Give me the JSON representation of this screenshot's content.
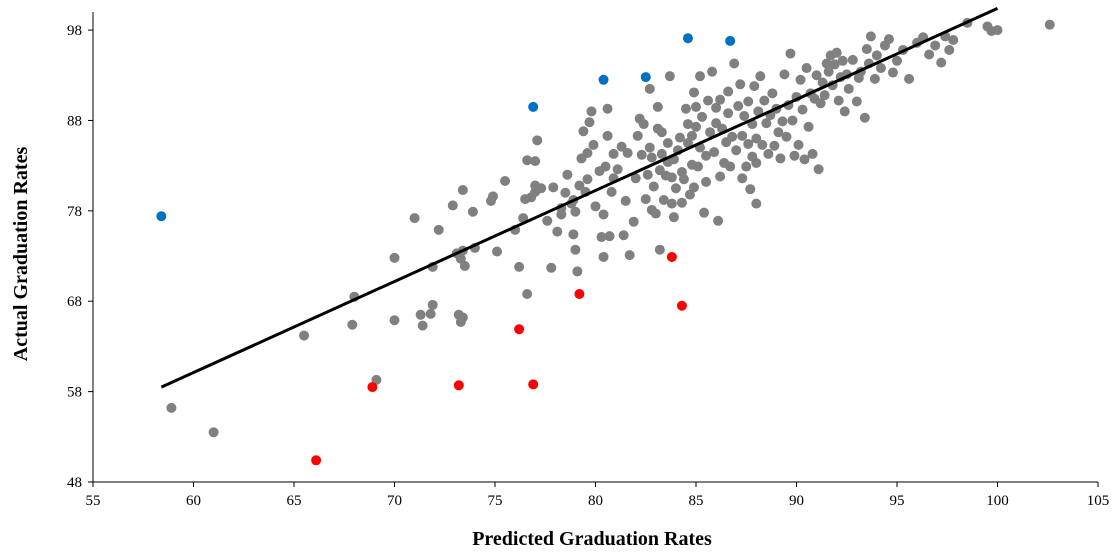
{
  "chart_data": {
    "type": "scatter",
    "title": "",
    "xlabel": "Predicted Graduation Rates",
    "ylabel": "Actual Graduation Rates",
    "xlim": [
      55,
      105
    ],
    "ylim": [
      48,
      100
    ],
    "x_ticks": [
      55,
      60,
      65,
      70,
      75,
      80,
      85,
      90,
      95,
      100,
      105
    ],
    "y_ticks": [
      48,
      58,
      68,
      78,
      88,
      98
    ],
    "grid": false,
    "legend": "none",
    "colors": {
      "base": "#808080",
      "over": "#0070C0",
      "under": "#FF0000",
      "trend": "#000000"
    },
    "series": [
      {
        "color": "#808080",
        "points": [
          [
            58.9,
            56.2
          ],
          [
            61,
            53.5
          ],
          [
            65.5,
            64.2
          ],
          [
            67.9,
            65.4
          ],
          [
            68,
            68.5
          ],
          [
            69.1,
            59.3
          ],
          [
            70,
            72.8
          ],
          [
            70,
            65.9
          ],
          [
            71,
            77.2
          ],
          [
            71.3,
            66.5
          ],
          [
            71.4,
            65.3
          ],
          [
            71.8,
            66.6
          ],
          [
            71.9,
            67.6
          ],
          [
            71.9,
            71.8
          ],
          [
            72.2,
            75.9
          ],
          [
            72.9,
            78.6
          ],
          [
            73.1,
            73.3
          ],
          [
            73.2,
            66.5
          ],
          [
            73.3,
            65.7
          ],
          [
            73.4,
            66.2
          ],
          [
            73.3,
            72.7
          ],
          [
            73.5,
            71.9
          ],
          [
            73.4,
            73.6
          ],
          [
            73.4,
            80.3
          ],
          [
            73.9,
            77.9
          ],
          [
            74,
            73.9
          ],
          [
            74.8,
            79.1
          ],
          [
            74.9,
            79.6
          ],
          [
            75.1,
            73.5
          ],
          [
            75.5,
            81.3
          ],
          [
            76,
            75.9
          ],
          [
            76.2,
            71.8
          ],
          [
            76.4,
            77.2
          ],
          [
            76.5,
            79.3
          ],
          [
            76.6,
            83.6
          ],
          [
            76.6,
            68.8
          ],
          [
            76.8,
            79.5
          ],
          [
            77,
            80.1
          ],
          [
            77,
            80.8
          ],
          [
            77,
            83.5
          ],
          [
            77.1,
            85.8
          ],
          [
            77.3,
            80.5
          ],
          [
            77.6,
            76.9
          ],
          [
            77.8,
            71.7
          ],
          [
            77.9,
            80.6
          ],
          [
            78.1,
            75.7
          ],
          [
            78.3,
            77.6
          ],
          [
            78.3,
            78.3
          ],
          [
            78.5,
            80
          ],
          [
            78.6,
            82
          ],
          [
            78.8,
            78.8
          ],
          [
            78.9,
            75.4
          ],
          [
            78.9,
            79.2
          ],
          [
            79,
            73.7
          ],
          [
            79,
            77.9
          ],
          [
            79.1,
            71.3
          ],
          [
            79.2,
            80.8
          ],
          [
            79.3,
            83.8
          ],
          [
            79.4,
            86.8
          ],
          [
            79.5,
            80.1
          ],
          [
            79.6,
            81.5
          ],
          [
            79.6,
            84.4
          ],
          [
            79.7,
            87.8
          ],
          [
            79.8,
            89
          ],
          [
            79.9,
            85.3
          ],
          [
            80,
            78.5
          ],
          [
            80.2,
            82.4
          ],
          [
            80.3,
            75.1
          ],
          [
            80.4,
            72.9
          ],
          [
            80.4,
            77.6
          ],
          [
            80.5,
            82.9
          ],
          [
            80.6,
            86.3
          ],
          [
            80.6,
            89.3
          ],
          [
            80.7,
            75.2
          ],
          [
            80.8,
            80.1
          ],
          [
            80.9,
            81.6
          ],
          [
            80.9,
            84.3
          ],
          [
            81.1,
            82.6
          ],
          [
            81.3,
            85.1
          ],
          [
            81.4,
            75.3
          ],
          [
            81.5,
            79.1
          ],
          [
            81.6,
            84.4
          ],
          [
            81.7,
            73.1
          ],
          [
            81.9,
            76.8
          ],
          [
            82,
            81.6
          ],
          [
            82.1,
            86.3
          ],
          [
            82.2,
            88.2
          ],
          [
            82.3,
            84.2
          ],
          [
            82.4,
            87.6
          ],
          [
            82.5,
            79.3
          ],
          [
            82.6,
            82
          ],
          [
            82.7,
            85
          ],
          [
            82.7,
            91.5
          ],
          [
            82.8,
            78.1
          ],
          [
            82.8,
            83.9
          ],
          [
            82.9,
            80.7
          ],
          [
            83,
            77.7
          ],
          [
            83.1,
            87.1
          ],
          [
            83.1,
            89.5
          ],
          [
            83.2,
            73.7
          ],
          [
            83.2,
            82.5
          ],
          [
            83.3,
            84.3
          ],
          [
            83.3,
            86.7
          ],
          [
            83.4,
            79.2
          ],
          [
            83.5,
            81.9
          ],
          [
            83.6,
            83.4
          ],
          [
            83.6,
            85.5
          ],
          [
            83.7,
            92.9
          ],
          [
            83.8,
            78.8
          ],
          [
            83.8,
            81.7
          ],
          [
            83.9,
            77.3
          ],
          [
            83.9,
            83.7
          ],
          [
            84,
            80.5
          ],
          [
            84.1,
            84.7
          ],
          [
            84.2,
            86.1
          ],
          [
            84.3,
            78.9
          ],
          [
            84.3,
            82.3
          ],
          [
            84.4,
            81.5
          ],
          [
            84.5,
            89.3
          ],
          [
            84.6,
            85.5
          ],
          [
            84.6,
            87.6
          ],
          [
            84.7,
            79.8
          ],
          [
            84.8,
            83.1
          ],
          [
            84.8,
            86.3
          ],
          [
            84.9,
            91.1
          ],
          [
            84.9,
            80.6
          ],
          [
            85,
            87.3
          ],
          [
            85,
            89.5
          ],
          [
            85.1,
            82.9
          ],
          [
            85.2,
            85
          ],
          [
            85.2,
            92.9
          ],
          [
            85.3,
            88.4
          ],
          [
            85.4,
            77.8
          ],
          [
            85.5,
            81.2
          ],
          [
            85.5,
            84.1
          ],
          [
            85.6,
            90.2
          ],
          [
            85.7,
            86.7
          ],
          [
            85.8,
            93.4
          ],
          [
            85.9,
            84.5
          ],
          [
            86,
            87.7
          ],
          [
            86,
            89.4
          ],
          [
            86.1,
            76.9
          ],
          [
            86.2,
            81.8
          ],
          [
            86.2,
            90.3
          ],
          [
            86.3,
            87.1
          ],
          [
            86.4,
            83.3
          ],
          [
            86.5,
            85.6
          ],
          [
            86.6,
            88.8
          ],
          [
            86.6,
            91.2
          ],
          [
            86.7,
            82.9
          ],
          [
            86.8,
            86.2
          ],
          [
            86.9,
            94.3
          ],
          [
            87,
            84.7
          ],
          [
            87.1,
            89.6
          ],
          [
            87.2,
            92
          ],
          [
            87.3,
            81.6
          ],
          [
            87.3,
            86.3
          ],
          [
            87.4,
            88.5
          ],
          [
            87.5,
            82.9
          ],
          [
            87.6,
            85.4
          ],
          [
            87.6,
            90.1
          ],
          [
            87.7,
            80.4
          ],
          [
            87.8,
            84
          ],
          [
            87.8,
            87.6
          ],
          [
            87.9,
            91.8
          ],
          [
            88,
            78.8
          ],
          [
            88,
            83.3
          ],
          [
            88,
            86
          ],
          [
            88.1,
            89
          ],
          [
            88.2,
            92.9
          ],
          [
            88.3,
            85.3
          ],
          [
            88.4,
            90.2
          ],
          [
            88.5,
            87.7
          ],
          [
            88.6,
            84.3
          ],
          [
            88.7,
            88.6
          ],
          [
            88.8,
            91
          ],
          [
            88.9,
            85.2
          ],
          [
            89,
            89.3
          ],
          [
            89.1,
            86.7
          ],
          [
            89.2,
            83.8
          ],
          [
            89.3,
            87.9
          ],
          [
            89.4,
            93.1
          ],
          [
            89.5,
            86.2
          ],
          [
            89.6,
            89.7
          ],
          [
            89.7,
            95.4
          ],
          [
            89.8,
            88
          ],
          [
            89.9,
            84.1
          ],
          [
            90,
            90.6
          ],
          [
            90.1,
            85.3
          ],
          [
            90.2,
            92.5
          ],
          [
            90.3,
            89.2
          ],
          [
            90.4,
            83.7
          ],
          [
            90.5,
            93.8
          ],
          [
            90.6,
            87.3
          ],
          [
            90.7,
            91
          ],
          [
            90.8,
            84.3
          ],
          [
            90.9,
            90.4
          ],
          [
            91,
            93
          ],
          [
            91.1,
            82.6
          ],
          [
            91.2,
            89.9
          ],
          [
            91.3,
            92.2
          ],
          [
            91.4,
            90.8
          ],
          [
            91.5,
            94.3
          ],
          [
            91.6,
            93.4
          ],
          [
            91.7,
            95.2
          ],
          [
            91.8,
            91.9
          ],
          [
            91.9,
            94.2
          ],
          [
            92,
            95.5
          ],
          [
            92.1,
            90.2
          ],
          [
            92.2,
            92.8
          ],
          [
            92.3,
            94.6
          ],
          [
            92.4,
            89
          ],
          [
            92.5,
            93.1
          ],
          [
            92.6,
            91.5
          ],
          [
            92.8,
            94.7
          ],
          [
            93,
            90.1
          ],
          [
            93.1,
            92.7
          ],
          [
            93.2,
            93.4
          ],
          [
            93.4,
            88.3
          ],
          [
            93.5,
            95.9
          ],
          [
            93.6,
            94.3
          ],
          [
            93.7,
            97.3
          ],
          [
            93.9,
            92.6
          ],
          [
            94,
            95.2
          ],
          [
            94.2,
            93.8
          ],
          [
            94.4,
            96.3
          ],
          [
            94.6,
            97
          ],
          [
            94.8,
            93.3
          ],
          [
            95,
            94.6
          ],
          [
            95.3,
            95.8
          ],
          [
            95.6,
            92.6
          ],
          [
            96,
            96.6
          ],
          [
            96.3,
            97.2
          ],
          [
            96.6,
            95.3
          ],
          [
            96.9,
            96.3
          ],
          [
            97.2,
            94.4
          ],
          [
            97.4,
            97.3
          ],
          [
            97.6,
            95.8
          ],
          [
            97.8,
            96.9
          ],
          [
            98.5,
            98.8
          ],
          [
            99.5,
            98.4
          ],
          [
            99.7,
            97.9
          ],
          [
            100,
            98
          ],
          [
            102.6,
            98.6
          ]
        ]
      },
      {
        "color": "#0070C0",
        "points": [
          [
            58.4,
            77.4
          ],
          [
            76.9,
            89.5
          ],
          [
            80.4,
            92.5
          ],
          [
            82.5,
            92.8
          ],
          [
            84.6,
            97.1
          ],
          [
            86.7,
            96.8
          ]
        ]
      },
      {
        "color": "#FF0000",
        "points": [
          [
            66.1,
            50.4
          ],
          [
            68.9,
            58.5
          ],
          [
            73.2,
            58.7
          ],
          [
            76.2,
            64.9
          ],
          [
            76.9,
            58.8
          ],
          [
            79.2,
            68.8
          ],
          [
            83.8,
            72.9
          ],
          [
            84.3,
            67.5
          ]
        ]
      }
    ],
    "trendline": {
      "x": [
        58.4,
        100
      ],
      "y": [
        58.5,
        100.4
      ]
    }
  }
}
